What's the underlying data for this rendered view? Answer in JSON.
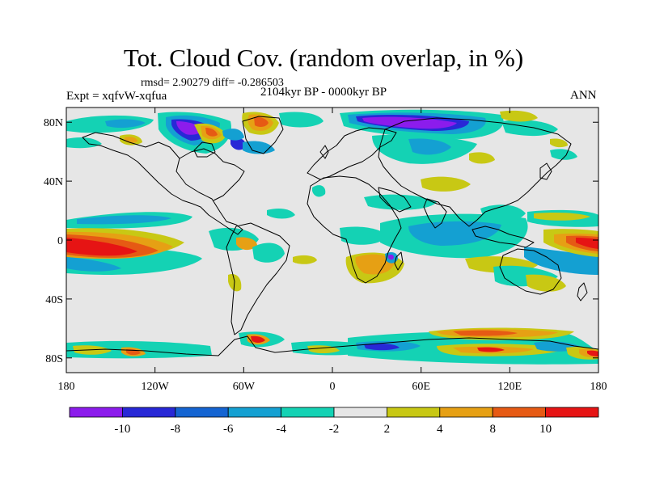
{
  "header": {
    "title": "Tot. Cloud Cov. (random overlap, in %)",
    "stats": "rmsd= 2.90279 diff= -0.286503",
    "period": "2104kyr BP - 0000kyr BP",
    "experiment": "Expt = xqfvW-xqfua",
    "season": "ANN"
  },
  "axes": {
    "lat_ticks": [
      {
        "value": 80,
        "label": "80N"
      },
      {
        "value": 40,
        "label": "40N"
      },
      {
        "value": 0,
        "label": "0"
      },
      {
        "value": -40,
        "label": "40S"
      },
      {
        "value": -80,
        "label": "80S"
      }
    ],
    "lon_ticks": [
      {
        "value": -180,
        "label": "180"
      },
      {
        "value": -120,
        "label": "120W"
      },
      {
        "value": -60,
        "label": "60W"
      },
      {
        "value": 0,
        "label": "0"
      },
      {
        "value": 60,
        "label": "60E"
      },
      {
        "value": 120,
        "label": "120E"
      },
      {
        "value": 180,
        "label": "180"
      }
    ],
    "lon_range": [
      -180,
      180
    ],
    "lat_range": [
      -90,
      90
    ]
  },
  "colorbar": {
    "colors": [
      "#8c1cec",
      "#2828d6",
      "#1464d2",
      "#14a0d2",
      "#14d2b4",
      "#e6e6e6",
      "#c8c814",
      "#e6a014",
      "#e65a14",
      "#e61414"
    ],
    "labels": [
      "-10",
      "-8",
      "-6",
      "-4",
      "-2",
      "2",
      "4",
      "8",
      "10"
    ]
  },
  "map": {
    "background_color": "#e6e6e6",
    "coastline_color": "#000000"
  }
}
